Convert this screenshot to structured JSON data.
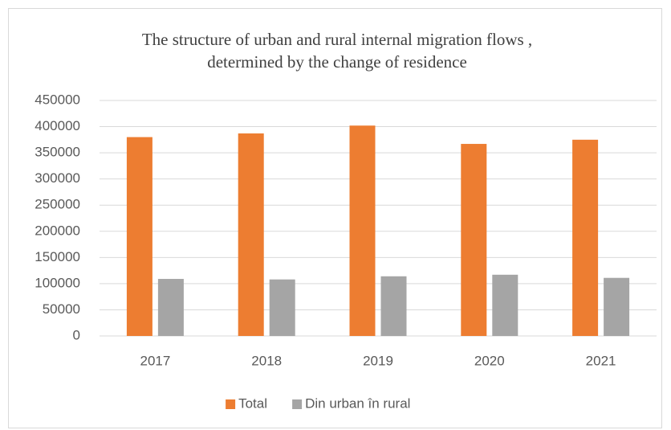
{
  "chart_data": {
    "type": "bar",
    "title": [
      "The structure of urban and rural internal migration flows ,",
      "determined by the change of residence"
    ],
    "categories": [
      "2017",
      "2018",
      "2019",
      "2020",
      "2021"
    ],
    "series": [
      {
        "name": "Total",
        "color": "#ed7d31",
        "values": [
          380000,
          387000,
          402000,
          367000,
          375000
        ]
      },
      {
        "name": "Din urban în rural",
        "color": "#a5a5a5",
        "values": [
          109000,
          108000,
          114000,
          117000,
          111000
        ]
      }
    ],
    "ylim": [
      0,
      450000
    ],
    "yticks": [
      0,
      50000,
      100000,
      150000,
      200000,
      250000,
      300000,
      350000,
      400000,
      450000
    ],
    "grid": true,
    "legend": "bottom"
  }
}
